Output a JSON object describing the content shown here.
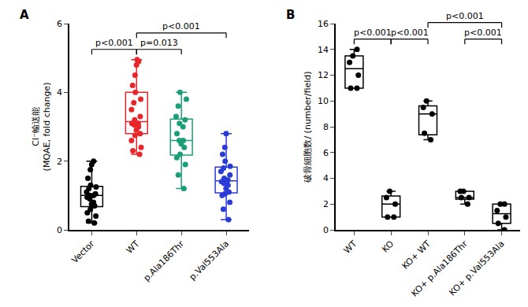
{
  "chart_data": [
    {
      "type": "box",
      "title": "A",
      "y_label": "Cl⁻輸送能\n(MQAE, fold change)",
      "categories": [
        "Vector",
        "WT",
        "p.Ala186Thr",
        "p.Val553Ala"
      ],
      "colors": [
        "#000000",
        "#e8262a",
        "#1a9e77",
        "#2a3bd6"
      ],
      "values": [
        [
          0.2,
          0.25,
          0.4,
          0.5,
          0.6,
          0.7,
          0.75,
          0.8,
          0.9,
          0.95,
          1.0,
          1.0,
          1.05,
          1.1,
          1.2,
          1.25,
          1.3,
          1.5,
          1.75,
          1.9,
          2.0
        ],
        [
          2.2,
          2.3,
          2.4,
          2.6,
          2.75,
          2.8,
          2.9,
          3.0,
          3.05,
          3.1,
          3.1,
          3.2,
          3.3,
          3.5,
          3.7,
          3.8,
          4.0,
          4.2,
          4.5,
          4.8,
          4.9,
          4.95
        ],
        [
          1.2,
          1.6,
          1.9,
          2.1,
          2.2,
          2.4,
          2.5,
          2.6,
          2.6,
          2.8,
          3.0,
          3.1,
          3.2,
          3.3,
          3.6,
          3.8,
          4.0
        ],
        [
          0.3,
          0.6,
          0.8,
          1.0,
          1.05,
          1.1,
          1.2,
          1.3,
          1.35,
          1.4,
          1.45,
          1.5,
          1.6,
          1.7,
          1.8,
          1.85,
          2.0,
          2.2,
          2.4,
          2.8
        ]
      ],
      "ylim": [
        0,
        6
      ],
      "yticks": [
        0,
        2,
        4,
        6
      ],
      "grid": false,
      "annotations": [
        {
          "from": "Vector",
          "to": "WT",
          "text": "p<0.001"
        },
        {
          "from": "WT",
          "to": "p.Ala186Thr",
          "text": "p=0.013"
        },
        {
          "from": "WT",
          "to": "p.Val553Ala",
          "text": "p<0.001"
        }
      ]
    },
    {
      "type": "box",
      "title": "B",
      "y_label": "破骨細胞数/ (number/field)",
      "categories": [
        "WT",
        "KO",
        "KO+ WT",
        "KO+ p.Ala186Thr",
        "KO+ p.Val553Ala"
      ],
      "color": "#000000",
      "values": [
        [
          11,
          11,
          12,
          13,
          13.5,
          14
        ],
        [
          1,
          1,
          2,
          2.5,
          3
        ],
        [
          7,
          7.5,
          9,
          9.5,
          10
        ],
        [
          2,
          2.5,
          2.5,
          3,
          3
        ],
        [
          0,
          0.5,
          1,
          1.5,
          2,
          2
        ]
      ],
      "ylim": [
        0,
        16
      ],
      "yticks": [
        0,
        2,
        4,
        6,
        8,
        10,
        12,
        14,
        16
      ],
      "grid": false,
      "annotations": [
        {
          "from": "WT",
          "to": "KO",
          "text": "p<0.001"
        },
        {
          "from": "KO",
          "to": "KO+ WT",
          "text": "p<0.001"
        },
        {
          "from": "KO+ WT",
          "to": "KO+ p.Val553Ala",
          "text": "p<0.001"
        },
        {
          "from": "KO+ p.Ala186Thr",
          "to": "KO+ p.Val553Ala",
          "text": "p<0.001"
        }
      ]
    }
  ]
}
